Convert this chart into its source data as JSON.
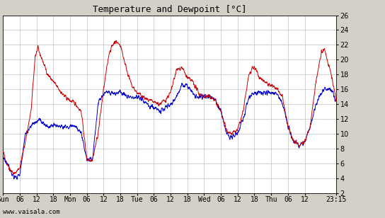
{
  "title": "Temperature and Dewpoint [°C]",
  "background_color": "#d4d0c8",
  "plot_bg_color": "#ffffff",
  "grid_color": "#c0c0c0",
  "temp_color": "#cc0000",
  "dewp_color": "#0000cc",
  "line_width": 0.7,
  "ylim": [
    2,
    26
  ],
  "yticks": [
    2,
    4,
    6,
    8,
    10,
    12,
    14,
    16,
    18,
    20,
    22,
    24,
    26
  ],
  "xtick_positions": [
    0,
    6,
    12,
    18,
    24,
    30,
    36,
    42,
    48,
    54,
    60,
    66,
    72,
    78,
    84,
    90,
    96,
    102,
    108,
    119.25
  ],
  "xtick_labels": [
    "Sun",
    "06",
    "12",
    "18",
    "Mon",
    "06",
    "12",
    "18",
    "Tue",
    "06",
    "12",
    "18",
    "Wed",
    "06",
    "12",
    "18",
    "Thu",
    "06",
    "12",
    "23:15"
  ],
  "watermark": "www.vaisala.com",
  "title_fontsize": 9,
  "tick_fontsize": 7,
  "n_points": 2000,
  "total_hours": 119.25,
  "temp_knots_h": [
    0,
    2,
    4,
    6,
    8,
    10,
    11.5,
    12.5,
    14,
    16,
    18,
    20,
    22,
    24,
    26,
    28,
    30,
    32,
    34,
    36,
    38,
    40,
    42,
    44,
    46,
    48,
    50,
    52,
    54,
    56,
    58,
    60,
    62,
    64,
    66,
    68,
    70,
    72,
    74,
    76,
    78,
    80,
    82,
    84,
    86,
    88,
    90,
    92,
    94,
    96,
    98,
    100,
    102,
    104,
    106,
    108,
    110,
    112,
    114,
    115,
    116,
    117.5,
    119.25
  ],
  "temp_knots_v": [
    7.5,
    5.5,
    4.5,
    5.5,
    9.0,
    13.0,
    20.5,
    21.5,
    20.0,
    18.0,
    17.0,
    16.0,
    15.0,
    14.5,
    14.0,
    13.0,
    6.5,
    6.5,
    10.0,
    16.0,
    21.0,
    22.5,
    22.0,
    19.0,
    16.5,
    15.5,
    15.0,
    14.5,
    14.2,
    14.0,
    14.5,
    15.5,
    18.5,
    19.0,
    17.5,
    17.0,
    15.5,
    15.0,
    15.0,
    14.5,
    13.0,
    10.5,
    10.0,
    10.5,
    13.0,
    18.0,
    19.0,
    17.5,
    17.0,
    16.5,
    16.0,
    15.0,
    11.0,
    9.0,
    8.5,
    9.0,
    11.0,
    17.0,
    21.0,
    21.5,
    20.0,
    18.0,
    14.5
  ],
  "dewp_knots_h": [
    0,
    2,
    4,
    6,
    8,
    10,
    11,
    12,
    13,
    14,
    16,
    18,
    20,
    22,
    24,
    26,
    28,
    30,
    32,
    34,
    36,
    38,
    40,
    42,
    44,
    46,
    48,
    50,
    52,
    54,
    56,
    58,
    60,
    62,
    64,
    66,
    68,
    70,
    72,
    74,
    76,
    78,
    80,
    82,
    84,
    86,
    88,
    90,
    92,
    94,
    96,
    98,
    100,
    102,
    104,
    106,
    108,
    110,
    112,
    114,
    115,
    116,
    117,
    118,
    119.25
  ],
  "dewp_knots_v": [
    7.0,
    5.5,
    4.0,
    4.5,
    10.0,
    11.0,
    11.5,
    11.5,
    12.0,
    11.5,
    11.0,
    11.0,
    11.0,
    11.0,
    11.0,
    11.0,
    10.0,
    6.5,
    6.5,
    14.0,
    15.5,
    15.5,
    15.5,
    15.5,
    15.0,
    15.0,
    15.0,
    14.5,
    14.0,
    13.5,
    13.0,
    13.5,
    14.0,
    15.0,
    16.5,
    16.5,
    15.5,
    15.0,
    15.0,
    15.0,
    14.5,
    13.0,
    10.0,
    9.5,
    10.0,
    12.0,
    15.0,
    15.5,
    15.5,
    15.5,
    15.5,
    15.5,
    14.0,
    11.0,
    9.0,
    8.5,
    9.0,
    11.0,
    14.0,
    15.5,
    16.0,
    16.0,
    16.0,
    15.5,
    14.5
  ]
}
